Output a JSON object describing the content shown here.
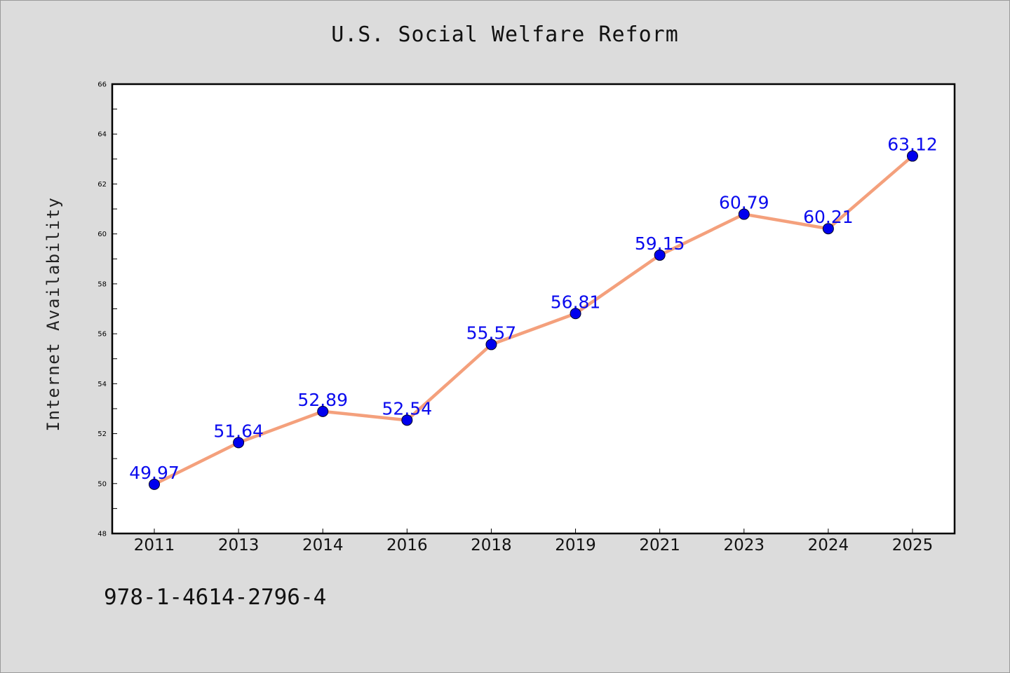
{
  "chart_data": {
    "type": "line",
    "title": "U.S. Social Welfare Reform",
    "xlabel": "",
    "ylabel": "Internet Availability",
    "categories": [
      "2011",
      "2013",
      "2014",
      "2016",
      "2018",
      "2019",
      "2021",
      "2023",
      "2024",
      "2025"
    ],
    "series": [
      {
        "values": [
          49.97,
          51.64,
          52.89,
          52.54,
          55.57,
          56.81,
          59.15,
          60.79,
          60.21,
          63.12
        ],
        "data_labels": [
          "49.97",
          "51.64",
          "52.89",
          "52.54",
          "55.57",
          "56.81",
          "59.15",
          "60.79",
          "60.21",
          "63.12"
        ]
      }
    ],
    "ylim": [
      48,
      66
    ],
    "yticks": [
      48,
      50,
      52,
      54,
      56,
      58,
      60,
      62,
      64,
      66
    ],
    "ytick_labels": [
      "48",
      "50",
      "52",
      "54",
      "56",
      "58",
      "60",
      "62",
      "64",
      "66"
    ],
    "grid": false,
    "colors": {
      "line": "#f4a07c",
      "marker": "#0000ee",
      "label": "#0a0aee",
      "background": "#dcdcdc",
      "plot_area": "#ffffff"
    }
  },
  "footer": {
    "isbn": "978-1-4614-2796-4"
  }
}
